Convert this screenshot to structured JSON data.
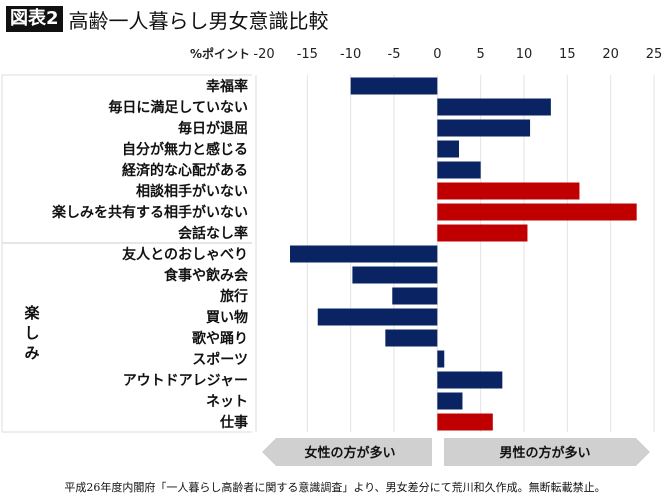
{
  "header": {
    "badge": "図表2",
    "title": "高齢一人暮らし男女意識比較"
  },
  "chart_data": {
    "type": "bar",
    "orientation": "horizontal",
    "unit_label": "%ポイント",
    "xlim": [
      -20,
      25
    ],
    "ticks": [
      -20,
      -15,
      -10,
      -5,
      0,
      5,
      10,
      15,
      20,
      25
    ],
    "grid": true,
    "group_label": "楽しみ",
    "categories": [
      "幸福率",
      "毎日に満足していない",
      "毎日が退屈",
      "自分が無力と感じる",
      "経済的な心配がある",
      "相談相手がいない",
      "楽しみを共有する相手がいない",
      "会話なし率",
      "友人とのおしゃべり",
      "食事や飲み会",
      "旅行",
      "買い物",
      "歌や踊り",
      "スポーツ",
      "アウトドアレジャー",
      "ネット",
      "仕事"
    ],
    "values": [
      -10.0,
      13.1,
      10.7,
      2.5,
      5.0,
      16.4,
      23.0,
      10.4,
      -17.0,
      -9.8,
      -5.2,
      -13.8,
      -6.0,
      0.8,
      7.5,
      2.9,
      6.4
    ],
    "highlight": [
      false,
      false,
      false,
      false,
      false,
      true,
      true,
      true,
      false,
      false,
      false,
      false,
      false,
      false,
      false,
      false,
      true
    ],
    "colors": {
      "normal": "#0a2463",
      "highlight": "#c00000",
      "grid": "#e3e3e3"
    },
    "arrows": {
      "left": "女性の方が多い",
      "right": "男性の方が多い"
    }
  },
  "footer": {
    "source": "平成26年度内閣府「一人暮らし高齢者に関する意識調査」より、男女差分にて荒川和久作成。無断転載禁止。"
  }
}
